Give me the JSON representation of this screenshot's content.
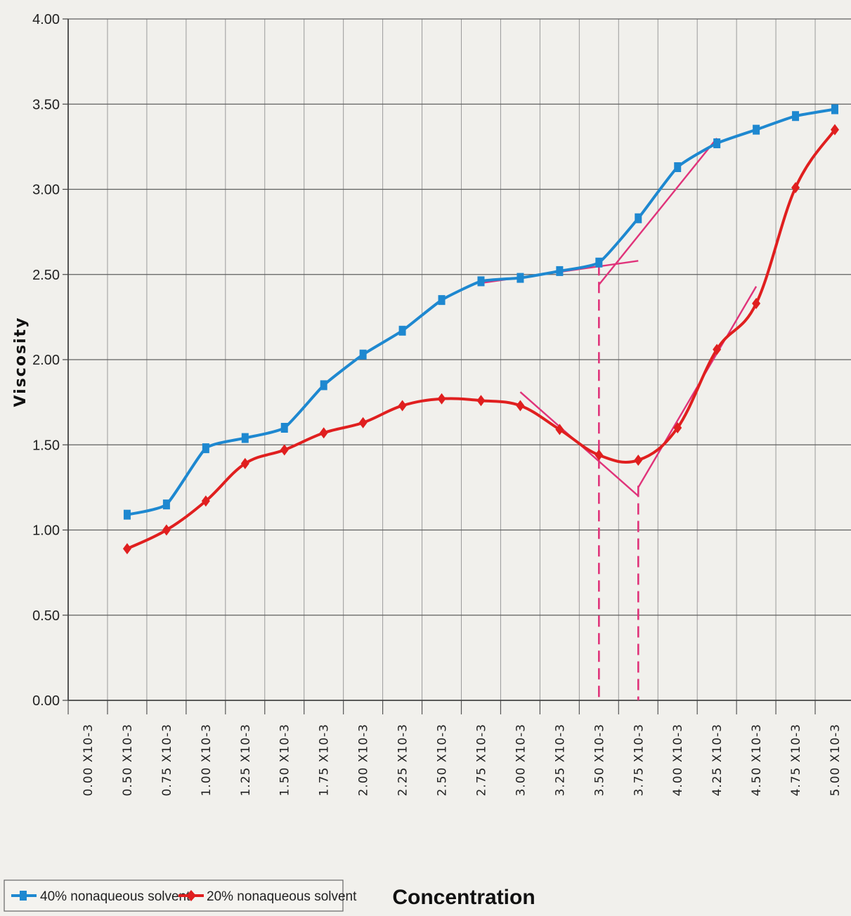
{
  "chart_data": {
    "type": "line",
    "title": "",
    "xlabel": "Concentration",
    "ylabel": "Viscosity",
    "categories": [
      "0.00 X10-3",
      "0.50 X10-3",
      "0.75 X10-3",
      "1.00 X10-3",
      "1.25 X10-3",
      "1.50 X10-3",
      "1.75 X10-3",
      "2.00 X10-3",
      "2.25 X10-3",
      "2.50 X10-3",
      "2.75 X10-3",
      "3.00 X10-3",
      "3.25 X10-3",
      "3.50 X10-3",
      "3.75 X10-3",
      "4.00 X10-3",
      "4.25 X10-3",
      "4.50 X10-3",
      "4.75 X10-3",
      "5.00 X10-3"
    ],
    "y_ticks": [
      "0.00",
      "0.50",
      "1.00",
      "1.50",
      "2.00",
      "2.50",
      "3.00",
      "3.50",
      "4.00"
    ],
    "ylim": [
      0,
      4
    ],
    "grid": true,
    "legend_position": "bottom-left",
    "series": [
      {
        "name": "40% nonaqueous solvent",
        "color": "#1e88d0",
        "marker": "square",
        "values": [
          null,
          1.09,
          1.15,
          1.48,
          1.54,
          1.6,
          1.85,
          2.03,
          2.17,
          2.35,
          2.46,
          2.48,
          2.52,
          2.57,
          2.83,
          3.13,
          3.27,
          3.35,
          3.43,
          3.47
        ]
      },
      {
        "name": "20% nonaqueous solvent",
        "color": "#e01f1f",
        "marker": "diamond",
        "values": [
          null,
          0.89,
          1.0,
          1.17,
          1.39,
          1.47,
          1.57,
          1.63,
          1.73,
          1.77,
          1.76,
          1.73,
          1.59,
          1.44,
          1.41,
          1.6,
          2.06,
          2.33,
          3.01,
          3.35
        ]
      }
    ],
    "annotations": {
      "tangent_color": "#e0337a",
      "tangent_lines": [
        {
          "from": [
            2.75,
            2.45
          ],
          "to": [
            3.75,
            2.58
          ]
        },
        {
          "from": [
            3.5,
            2.44
          ],
          "to": [
            4.25,
            3.3
          ]
        },
        {
          "from": [
            3.0,
            1.81
          ],
          "to": [
            3.75,
            1.2
          ]
        },
        {
          "from": [
            3.75,
            1.25
          ],
          "to": [
            4.5,
            2.43
          ]
        }
      ],
      "dashed_drop_lines": [
        {
          "x": 3.5,
          "from_y": 2.56,
          "to_y": 0
        },
        {
          "x": 3.75,
          "from_y": 1.26,
          "to_y": 0
        }
      ]
    }
  },
  "legend": {
    "series1_label": "40% nonaqueous solvent",
    "series2_label": "20% nonaqueous solvent"
  }
}
